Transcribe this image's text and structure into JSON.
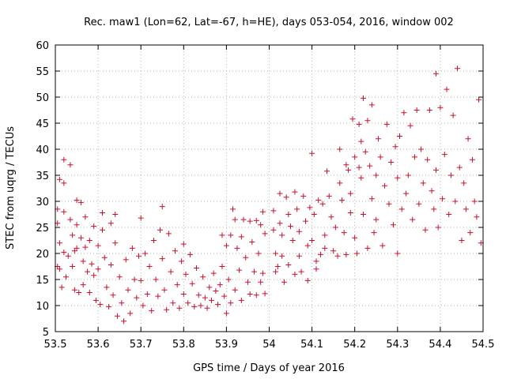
{
  "chart_data": {
    "type": "scatter",
    "title": "Rec. maw1 (Lon=62, Lat=-67, h=HE), days 053-054, 2016, window 002",
    "xlabel": "GPS time / Days of year 2016",
    "ylabel": "STEC from uqrg / TECUs",
    "xlim": [
      53.5,
      54.5
    ],
    "ylim": [
      5,
      60
    ],
    "xticks": [
      "53.5",
      "53.6",
      "53.7",
      "53.8",
      "53.9",
      "54",
      "54.1",
      "54.2",
      "54.3",
      "54.4",
      "54.5"
    ],
    "yticks": [
      "5",
      "10",
      "15",
      "20",
      "25",
      "30",
      "35",
      "40",
      "45",
      "50",
      "55",
      "60"
    ],
    "grid": true,
    "marker": "+",
    "color": "#c8102e",
    "points": [
      [
        53.505,
        28.5
      ],
      [
        53.505,
        25.8
      ],
      [
        53.51,
        34.2
      ],
      [
        53.51,
        22
      ],
      [
        53.505,
        17.5
      ],
      [
        53.51,
        17
      ],
      [
        53.515,
        13.5
      ],
      [
        53.52,
        38
      ],
      [
        53.52,
        33.5
      ],
      [
        53.52,
        28
      ],
      [
        53.52,
        20.2
      ],
      [
        53.525,
        15.5
      ],
      [
        53.53,
        19.5
      ],
      [
        53.535,
        37
      ],
      [
        53.535,
        26.5
      ],
      [
        53.54,
        23.5
      ],
      [
        53.54,
        17.5
      ],
      [
        53.545,
        20.5
      ],
      [
        53.545,
        13
      ],
      [
        53.55,
        30.2
      ],
      [
        53.55,
        25.5
      ],
      [
        53.55,
        21
      ],
      [
        53.555,
        12.5
      ],
      [
        53.56,
        29.8
      ],
      [
        53.56,
        23
      ],
      [
        53.565,
        18.5
      ],
      [
        53.565,
        14
      ],
      [
        53.57,
        27
      ],
      [
        53.57,
        21.2
      ],
      [
        53.575,
        16.5
      ],
      [
        53.58,
        22.5
      ],
      [
        53.58,
        12.5
      ],
      [
        53.585,
        18
      ],
      [
        53.59,
        25.2
      ],
      [
        53.59,
        15.8
      ],
      [
        53.595,
        11
      ],
      [
        53.6,
        21.5
      ],
      [
        53.6,
        17
      ],
      [
        53.605,
        10.2
      ],
      [
        53.61,
        27.8
      ],
      [
        53.61,
        24.5
      ],
      [
        53.615,
        19.2
      ],
      [
        53.62,
        13.5
      ],
      [
        53.625,
        9.8
      ],
      [
        53.63,
        25.8
      ],
      [
        53.63,
        17.8
      ],
      [
        53.635,
        12
      ],
      [
        53.64,
        27.5
      ],
      [
        53.64,
        22
      ],
      [
        53.645,
        8
      ],
      [
        53.65,
        15.5
      ],
      [
        53.655,
        10.5
      ],
      [
        53.66,
        7
      ],
      [
        53.665,
        18.8
      ],
      [
        53.67,
        13
      ],
      [
        53.675,
        8.5
      ],
      [
        53.68,
        21
      ],
      [
        53.685,
        15
      ],
      [
        53.69,
        11.5
      ],
      [
        53.695,
        19.5
      ],
      [
        53.7,
        26.8
      ],
      [
        53.7,
        14.8
      ],
      [
        53.705,
        10
      ],
      [
        53.71,
        20
      ],
      [
        53.715,
        12.2
      ],
      [
        53.72,
        17.5
      ],
      [
        53.725,
        9
      ],
      [
        53.73,
        22.5
      ],
      [
        53.735,
        15
      ],
      [
        53.74,
        11.8
      ],
      [
        53.745,
        24.5
      ],
      [
        53.75,
        29
      ],
      [
        53.75,
        19
      ],
      [
        53.755,
        13
      ],
      [
        53.76,
        9.2
      ],
      [
        53.765,
        23.8
      ],
      [
        53.77,
        16.5
      ],
      [
        53.775,
        10.5
      ],
      [
        53.78,
        20.5
      ],
      [
        53.785,
        14
      ],
      [
        53.79,
        9.5
      ],
      [
        53.795,
        18.5
      ],
      [
        53.8,
        21.8
      ],
      [
        53.8,
        12.2
      ],
      [
        53.805,
        16
      ],
      [
        53.81,
        10.5
      ],
      [
        53.815,
        19.8
      ],
      [
        53.82,
        14.2
      ],
      [
        53.825,
        9.8
      ],
      [
        53.83,
        17.2
      ],
      [
        53.835,
        12
      ],
      [
        53.84,
        10
      ],
      [
        53.845,
        15.5
      ],
      [
        53.85,
        11.5
      ],
      [
        53.855,
        9.5
      ],
      [
        53.86,
        13.5
      ],
      [
        53.865,
        11
      ],
      [
        53.87,
        16.2
      ],
      [
        53.875,
        12.8
      ],
      [
        53.88,
        10.2
      ],
      [
        53.885,
        14
      ],
      [
        53.89,
        23.5
      ],
      [
        53.89,
        17.5
      ],
      [
        53.895,
        11.8
      ],
      [
        53.9,
        21.5
      ],
      [
        53.9,
        8.5
      ],
      [
        53.905,
        15
      ],
      [
        53.91,
        23.5
      ],
      [
        53.91,
        10.5
      ],
      [
        53.915,
        28.5
      ],
      [
        53.92,
        26.5
      ],
      [
        53.92,
        13
      ],
      [
        53.925,
        21
      ],
      [
        53.93,
        16.8
      ],
      [
        53.935,
        23.2
      ],
      [
        53.935,
        11
      ],
      [
        53.94,
        26.5
      ],
      [
        53.945,
        19.2
      ],
      [
        53.95,
        14.5
      ],
      [
        53.955,
        26.2
      ],
      [
        53.955,
        12.2
      ],
      [
        53.96,
        22.2
      ],
      [
        53.965,
        16.5
      ],
      [
        53.97,
        26.3
      ],
      [
        53.97,
        12
      ],
      [
        53.975,
        20
      ],
      [
        53.98,
        25.5
      ],
      [
        53.98,
        14.5
      ],
      [
        53.985,
        28
      ],
      [
        53.985,
        16.2
      ],
      [
        53.99,
        23.8
      ],
      [
        53.99,
        12.3
      ],
      [
        54.01,
        28.2
      ],
      [
        54.01,
        24.5
      ],
      [
        54.015,
        20
      ],
      [
        54.015,
        16.5
      ],
      [
        54.02,
        17.5
      ],
      [
        54.025,
        31.5
      ],
      [
        54.025,
        25.8
      ],
      [
        54.03,
        23.5
      ],
      [
        54.03,
        19.5
      ],
      [
        54.035,
        14.5
      ],
      [
        54.04,
        30.8
      ],
      [
        54.045,
        27.5
      ],
      [
        54.045,
        17.8
      ],
      [
        54.05,
        25.2
      ],
      [
        54.055,
        22.5
      ],
      [
        54.06,
        31.8
      ],
      [
        54.06,
        16
      ],
      [
        54.065,
        28.5
      ],
      [
        54.07,
        24.2
      ],
      [
        54.07,
        19.5
      ],
      [
        54.075,
        16.5
      ],
      [
        54.08,
        31
      ],
      [
        54.085,
        26.2
      ],
      [
        54.09,
        21.5
      ],
      [
        54.09,
        14.8
      ],
      [
        54.095,
        28.8
      ],
      [
        54.1,
        39.2
      ],
      [
        54.1,
        22.5
      ],
      [
        54.105,
        27.5
      ],
      [
        54.11,
        18.5
      ],
      [
        54.11,
        17
      ],
      [
        54.115,
        30.2
      ],
      [
        54.12,
        19.8
      ],
      [
        54.125,
        29.5
      ],
      [
        54.13,
        23.5
      ],
      [
        54.13,
        21
      ],
      [
        54.135,
        35.8
      ],
      [
        54.14,
        31
      ],
      [
        54.145,
        27
      ],
      [
        54.15,
        20.5
      ],
      [
        54.155,
        25
      ],
      [
        54.16,
        19.5
      ],
      [
        54.165,
        40
      ],
      [
        54.165,
        33.5
      ],
      [
        54.17,
        30.2
      ],
      [
        54.175,
        24
      ],
      [
        54.18,
        37
      ],
      [
        54.18,
        19.8
      ],
      [
        54.185,
        36
      ],
      [
        54.19,
        31.5
      ],
      [
        54.19,
        27.8
      ],
      [
        54.195,
        45.8
      ],
      [
        54.2,
        38.5
      ],
      [
        54.2,
        23
      ],
      [
        54.205,
        20
      ],
      [
        54.21,
        44.8
      ],
      [
        54.21,
        36.5
      ],
      [
        54.215,
        41.5
      ],
      [
        54.215,
        34.5
      ],
      [
        54.22,
        49.8
      ],
      [
        54.22,
        27.5
      ],
      [
        54.225,
        39.5
      ],
      [
        54.23,
        45.5
      ],
      [
        54.23,
        21
      ],
      [
        54.235,
        36.8
      ],
      [
        54.24,
        48.5
      ],
      [
        54.24,
        30.5
      ],
      [
        54.245,
        24
      ],
      [
        54.25,
        35
      ],
      [
        54.25,
        26.5
      ],
      [
        54.255,
        42
      ],
      [
        54.26,
        38.5
      ],
      [
        54.265,
        21.5
      ],
      [
        54.27,
        33
      ],
      [
        54.275,
        44.8
      ],
      [
        54.28,
        29.5
      ],
      [
        54.285,
        37.5
      ],
      [
        54.29,
        25.5
      ],
      [
        54.295,
        40.5
      ],
      [
        54.3,
        34.5
      ],
      [
        54.3,
        20
      ],
      [
        54.305,
        42.5
      ],
      [
        54.31,
        28.5
      ],
      [
        54.315,
        47
      ],
      [
        54.32,
        31.5
      ],
      [
        54.325,
        35
      ],
      [
        54.33,
        44.5
      ],
      [
        54.335,
        26.5
      ],
      [
        54.34,
        38.5
      ],
      [
        54.345,
        47.5
      ],
      [
        54.35,
        29.5
      ],
      [
        54.355,
        40
      ],
      [
        54.36,
        33.5
      ],
      [
        54.365,
        24.5
      ],
      [
        54.37,
        38
      ],
      [
        54.375,
        47.5
      ],
      [
        54.38,
        32
      ],
      [
        54.385,
        28.5
      ],
      [
        54.39,
        54.5
      ],
      [
        54.39,
        36
      ],
      [
        54.395,
        25
      ],
      [
        54.4,
        48
      ],
      [
        54.405,
        30.5
      ],
      [
        54.41,
        39
      ],
      [
        54.415,
        51.5
      ],
      [
        54.42,
        27.5
      ],
      [
        54.425,
        35
      ],
      [
        54.43,
        46.5
      ],
      [
        54.435,
        30
      ],
      [
        54.44,
        55.5
      ],
      [
        54.445,
        36.5
      ],
      [
        54.45,
        22.5
      ],
      [
        54.455,
        33.5
      ],
      [
        54.46,
        28.5
      ],
      [
        54.465,
        42
      ],
      [
        54.47,
        24
      ],
      [
        54.475,
        38
      ],
      [
        54.48,
        30
      ],
      [
        54.485,
        27
      ],
      [
        54.49,
        49.5
      ],
      [
        54.495,
        22
      ]
    ]
  }
}
